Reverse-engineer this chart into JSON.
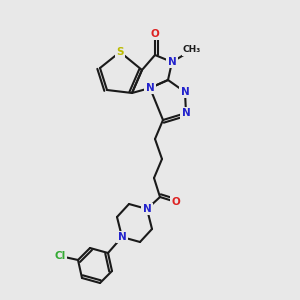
{
  "bg_color": "#e8e8e8",
  "bond_color": "#1a1a1a",
  "colors": {
    "C": "#1a1a1a",
    "N": "#2222cc",
    "O": "#dd2222",
    "S": "#bbbb00",
    "Cl": "#33aa33"
  },
  "figsize": [
    3.0,
    3.0
  ],
  "dpi": 100,
  "bond_lw": 1.5,
  "font_size": 7.5
}
